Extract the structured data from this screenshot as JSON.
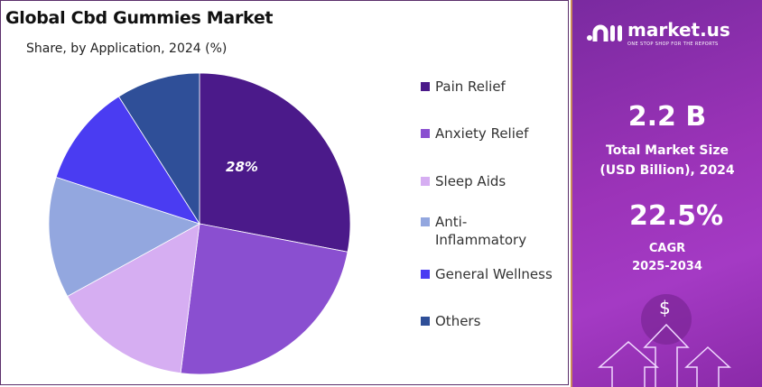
{
  "chart_data": {
    "type": "pie",
    "title": "Global Cbd Gummies Market",
    "subtitle": "Share, by Application, 2024 (%)",
    "categories": [
      "Pain Relief",
      "Anxiety Relief",
      "Sleep Aids",
      "Anti-Inflammatory",
      "General Wellness",
      "Others"
    ],
    "legend_labels": [
      "Pain Relief",
      "Anxiety Relief",
      "Sleep Aids",
      "Anti-\nInflammatory",
      "General Wellness",
      "Others"
    ],
    "values": [
      28,
      24,
      15,
      13,
      11,
      9
    ],
    "colors": [
      "#4b1a8a",
      "#8a4fd0",
      "#d6aef2",
      "#93a7df",
      "#4a3cf2",
      "#2f4f98"
    ],
    "data_labels": [
      "28%",
      "",
      "",
      "",
      "",
      ""
    ],
    "legend_position": "right"
  },
  "sidebar": {
    "brand": "market.us",
    "tagline": "ONE STOP SHOP FOR THE REPORTS",
    "market_size": "2.2 B",
    "market_size_label_1": "Total Market Size",
    "market_size_label_2": "(USD Billion), 2024",
    "cagr": "22.5%",
    "cagr_label": "CAGR",
    "cagr_period": "2025-2034",
    "dollar": "$"
  }
}
